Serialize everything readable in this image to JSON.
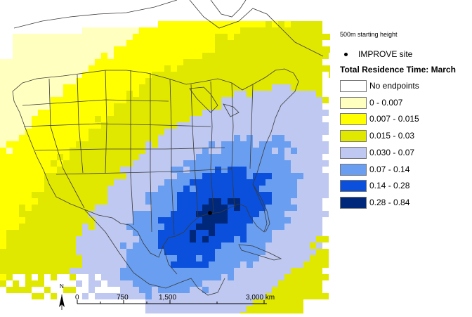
{
  "legend": {
    "subtitle": "500m starting height",
    "site_label": "IMPROVE site",
    "title": "Total Residence Time: March",
    "classes": [
      {
        "label": "No endpoints",
        "color": "#ffffff"
      },
      {
        "label": "0 - 0.007",
        "color": "#ffffc0"
      },
      {
        "label": "0.007 - 0.015",
        "color": "#ffff00"
      },
      {
        "label": "0.015 - 0.03",
        "color": "#e1e800"
      },
      {
        "label": "0.030 - 0.07",
        "color": "#bec8f0"
      },
      {
        "label": "0.07 - 0.14",
        "color": "#6a9ef0"
      },
      {
        "label": "0.14 - 0.28",
        "color": "#0a50dc"
      },
      {
        "label": "0.28 - 0.84",
        "color": "#00287a"
      }
    ]
  },
  "scale_bar": {
    "north": "N",
    "ticks": [
      "0",
      "750",
      "1,500",
      "3,000 km"
    ]
  },
  "colors": {
    "borders": "#3a3a3a",
    "improve_site": "#000000"
  }
}
